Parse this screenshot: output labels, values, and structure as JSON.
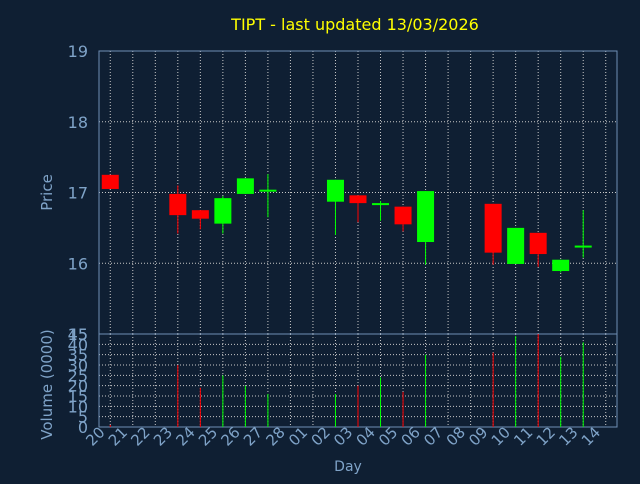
{
  "title": "TIPT - last updated 13/03/2026",
  "colors": {
    "background": "#0f1f33",
    "title": "#ffff00",
    "axis_text": "#7fa3c8",
    "axis_line": "#6f8fb5",
    "grid": "#c8c8c8",
    "up": "#00ff00",
    "down": "#ff0000"
  },
  "chart_data": [
    {
      "type": "candlestick",
      "ylabel": "Price",
      "ylim": [
        15,
        19
      ],
      "yticks": [
        15,
        16,
        17,
        18,
        19
      ],
      "grid": true,
      "x_tick_labels": [
        "20",
        "21",
        "22",
        "23",
        "24",
        "25",
        "26",
        "27",
        "28",
        "01",
        "02",
        "03",
        "04",
        "05",
        "06",
        "07",
        "08",
        "09",
        "10",
        "11",
        "12",
        "13",
        "14"
      ],
      "candles": [
        {
          "day": "20",
          "open": 17.25,
          "high": 17.25,
          "low": 17.05,
          "close": 17.05
        },
        {
          "day": "23",
          "open": 16.98,
          "high": 17.1,
          "low": 16.42,
          "close": 16.68
        },
        {
          "day": "24",
          "open": 16.75,
          "high": 16.75,
          "low": 16.48,
          "close": 16.63
        },
        {
          "day": "25",
          "open": 16.56,
          "high": 16.95,
          "low": 16.42,
          "close": 16.92
        },
        {
          "day": "26",
          "open": 16.98,
          "high": 17.2,
          "low": 16.98,
          "close": 17.2
        },
        {
          "day": "27",
          "open": 17.02,
          "high": 17.26,
          "low": 16.65,
          "close": 17.04
        },
        {
          "day": "02",
          "open": 16.87,
          "high": 17.18,
          "low": 16.4,
          "close": 17.18
        },
        {
          "day": "03",
          "open": 16.96,
          "high": 16.96,
          "low": 16.58,
          "close": 16.85
        },
        {
          "day": "04",
          "open": 16.83,
          "high": 16.88,
          "low": 16.6,
          "close": 16.85
        },
        {
          "day": "05",
          "open": 16.8,
          "high": 16.8,
          "low": 16.45,
          "close": 16.55
        },
        {
          "day": "06",
          "open": 16.3,
          "high": 17.02,
          "low": 15.98,
          "close": 17.02
        },
        {
          "day": "09",
          "open": 16.84,
          "high": 16.84,
          "low": 15.98,
          "close": 16.15
        },
        {
          "day": "10",
          "open": 15.99,
          "high": 16.5,
          "low": 15.99,
          "close": 16.5
        },
        {
          "day": "11",
          "open": 16.43,
          "high": 16.43,
          "low": 15.95,
          "close": 16.13
        },
        {
          "day": "12",
          "open": 15.89,
          "high": 16.05,
          "low": 15.87,
          "close": 16.05
        },
        {
          "day": "13",
          "open": 16.23,
          "high": 16.75,
          "low": 16.08,
          "close": 16.25
        }
      ]
    },
    {
      "type": "bar",
      "ylabel": "Volume (0000)",
      "xlabel": "Day",
      "ylim": [
        0,
        45
      ],
      "yticks": [
        0,
        5,
        10,
        15,
        20,
        25,
        30,
        35,
        40,
        45
      ],
      "grid": true,
      "x_tick_labels": [
        "20",
        "21",
        "22",
        "23",
        "24",
        "25",
        "26",
        "27",
        "28",
        "01",
        "02",
        "03",
        "04",
        "05",
        "06",
        "07",
        "08",
        "09",
        "10",
        "11",
        "12",
        "13",
        "14"
      ],
      "bars": [
        {
          "day": "20",
          "value": 1,
          "direction": "down"
        },
        {
          "day": "23",
          "value": 30,
          "direction": "down"
        },
        {
          "day": "24",
          "value": 19,
          "direction": "down"
        },
        {
          "day": "25",
          "value": 25,
          "direction": "up"
        },
        {
          "day": "26",
          "value": 20,
          "direction": "up"
        },
        {
          "day": "27",
          "value": 16,
          "direction": "up"
        },
        {
          "day": "02",
          "value": 16,
          "direction": "up"
        },
        {
          "day": "03",
          "value": 20,
          "direction": "down"
        },
        {
          "day": "04",
          "value": 24,
          "direction": "up"
        },
        {
          "day": "05",
          "value": 17,
          "direction": "down"
        },
        {
          "day": "06",
          "value": 35,
          "direction": "up"
        },
        {
          "day": "09",
          "value": 36,
          "direction": "down"
        },
        {
          "day": "10",
          "value": 44,
          "direction": "up"
        },
        {
          "day": "11",
          "value": 45,
          "direction": "down"
        },
        {
          "day": "12",
          "value": 34,
          "direction": "up"
        },
        {
          "day": "13",
          "value": 41,
          "direction": "up"
        }
      ]
    }
  ]
}
